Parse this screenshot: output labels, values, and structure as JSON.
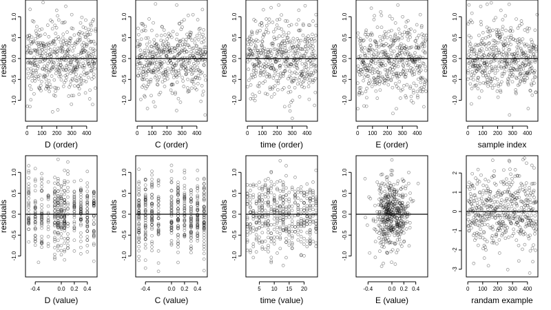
{
  "chart_data": [
    {
      "id": "D_order",
      "type": "scatter",
      "xlabel": "D (order)",
      "ylabel": "residuals",
      "xlim": [
        -10,
        470
      ],
      "ylim": [
        -1.5,
        1.4
      ],
      "xticks": [
        0,
        100,
        200,
        300,
        400
      ],
      "yticks": [
        -1.0,
        -0.5,
        0.0,
        0.5,
        1.0
      ],
      "ytick_labels": [
        "-1.0",
        "-0.5",
        "0.0",
        "0.5",
        "1.0"
      ],
      "hline": 0,
      "x_generator": "index",
      "n": 460,
      "y_sd": 0.45,
      "points_sample": [
        [
          260,
          1.25
        ],
        [
          440,
          -1.1
        ],
        [
          20,
          -1.15
        ],
        [
          300,
          1.05
        ]
      ]
    },
    {
      "id": "C_order",
      "type": "scatter",
      "xlabel": "C (order)",
      "ylabel": "residuals",
      "xlim": [
        -10,
        470
      ],
      "ylim": [
        -1.5,
        1.4
      ],
      "xticks": [
        0,
        100,
        200,
        300,
        400
      ],
      "yticks": [
        -1.0,
        -0.5,
        0.0,
        0.5,
        1.0
      ],
      "ytick_labels": [
        "-1.0",
        "-0.5",
        "0.0",
        "0.5",
        "1.0"
      ],
      "hline": 0,
      "x_generator": "index",
      "n": 460,
      "y_sd": 0.45,
      "points_sample": [
        [
          265,
          1.28
        ],
        [
          455,
          -1.35
        ],
        [
          120,
          -1.15
        ]
      ]
    },
    {
      "id": "time_order",
      "type": "scatter",
      "xlabel": "time (order)",
      "ylabel": "residuals",
      "xlim": [
        -10,
        470
      ],
      "ylim": [
        -1.5,
        1.4
      ],
      "xticks": [
        0,
        100,
        200,
        300,
        400
      ],
      "yticks": [
        -1.0,
        -0.5,
        0.0,
        0.5,
        1.0
      ],
      "ytick_labels": [
        "-1.0",
        "-0.5",
        "0.0",
        "0.5",
        "1.0"
      ],
      "hline": 0,
      "x_generator": "index",
      "n": 460,
      "y_sd": 0.45,
      "points_sample": [
        [
          210,
          1.28
        ],
        [
          460,
          1.05
        ],
        [
          250,
          -1.15
        ]
      ]
    },
    {
      "id": "E_order",
      "type": "scatter",
      "xlabel": "E (order)",
      "ylabel": "residuals",
      "xlim": [
        -10,
        470
      ],
      "ylim": [
        -1.5,
        1.4
      ],
      "xticks": [
        0,
        100,
        200,
        300,
        400
      ],
      "yticks": [
        -1.0,
        -0.5,
        0.0,
        0.5,
        1.0
      ],
      "ytick_labels": [
        "-1.0",
        "-0.5",
        "0.0",
        "0.5",
        "1.0"
      ],
      "hline": 0,
      "x_generator": "index",
      "n": 460,
      "y_sd": 0.45,
      "points_sample": [
        [
          270,
          1.28
        ],
        [
          420,
          1.05
        ],
        [
          260,
          -1.2
        ]
      ]
    },
    {
      "id": "sample_index",
      "type": "scatter",
      "xlabel": "sample index",
      "ylabel": "residuals",
      "xlim": [
        -10,
        470
      ],
      "ylim": [
        -1.5,
        1.4
      ],
      "xticks": [
        0,
        100,
        200,
        300,
        400
      ],
      "yticks": [
        -1.0,
        -0.5,
        0.0,
        0.5,
        1.0
      ],
      "ytick_labels": [
        "-1.0",
        "-0.5",
        "0.0",
        "0.5",
        "1.0"
      ],
      "hline": 0,
      "x_generator": "index",
      "n": 460,
      "y_sd": 0.45,
      "points_sample": [
        [
          130,
          1.3
        ],
        [
          465,
          1.05
        ],
        [
          280,
          -1.35
        ]
      ]
    },
    {
      "id": "D_value",
      "type": "scatter",
      "xlabel": "D (value)",
      "ylabel": "residuals",
      "xlim": [
        -0.55,
        0.55
      ],
      "ylim": [
        -1.5,
        1.4
      ],
      "xticks": [
        -0.4,
        0.0,
        0.2,
        0.4
      ],
      "xtick_labels": [
        "-0.4",
        "0.0",
        "0.2",
        "0.4"
      ],
      "yticks": [
        -1.0,
        -0.5,
        0.0,
        0.5,
        1.0
      ],
      "ytick_labels": [
        "-1.0",
        "-0.5",
        "0.0",
        "0.5",
        "1.0"
      ],
      "hline": 0,
      "x_generator": "levels",
      "levels": [
        -0.5,
        -0.4,
        -0.3,
        -0.2,
        -0.1,
        -0.05,
        0.0,
        0.05,
        0.1,
        0.2,
        0.3,
        0.4,
        0.5
      ],
      "n": 460,
      "y_sd": 0.45,
      "points_sample": [
        [
          0.1,
          1.25
        ],
        [
          -0.35,
          -1.15
        ]
      ]
    },
    {
      "id": "C_value",
      "type": "scatter",
      "xlabel": "C (value)",
      "ylabel": "residuals",
      "xlim": [
        -0.55,
        0.55
      ],
      "ylim": [
        -1.5,
        1.4
      ],
      "xticks": [
        -0.4,
        0.0,
        0.2,
        0.4
      ],
      "xtick_labels": [
        "-0.4",
        "0.0",
        "0.2",
        "0.4"
      ],
      "yticks": [
        -1.0,
        -0.5,
        0.0,
        0.5,
        1.0
      ],
      "ytick_labels": [
        "-1.0",
        "-0.5",
        "0.0",
        "0.5",
        "1.0"
      ],
      "hline": 0,
      "x_generator": "levels",
      "levels": [
        -0.5,
        -0.4,
        -0.3,
        -0.2,
        0.0,
        0.1,
        0.2,
        0.3,
        0.4,
        0.5
      ],
      "n": 460,
      "y_sd": 0.45,
      "points_sample": [
        [
          0.2,
          1.05
        ],
        [
          0.5,
          -1.35
        ]
      ]
    },
    {
      "id": "time_value",
      "type": "scatter",
      "xlabel": "time (value)",
      "ylabel": "residuals",
      "xlim": [
        0.5,
        24.5
      ],
      "ylim": [
        -1.5,
        1.4
      ],
      "xticks": [
        5,
        10,
        15,
        20
      ],
      "xtick_labels": [
        "5",
        "10",
        "15",
        "20"
      ],
      "yticks": [
        -1.0,
        -0.5,
        0.0,
        0.5,
        1.0
      ],
      "ytick_labels": [
        "-1.0",
        "-0.5",
        "0.0",
        "0.5",
        "1.0"
      ],
      "hline": 0,
      "x_generator": "levels",
      "levels": [
        1,
        2,
        3,
        4,
        5,
        6,
        7,
        8,
        9,
        10,
        11,
        12,
        13,
        14,
        15,
        16,
        17,
        18,
        19,
        20,
        21,
        22,
        23,
        24
      ],
      "n": 460,
      "y_sd": 0.45,
      "points_sample": [
        [
          12,
          1.28
        ],
        [
          24,
          1.05
        ]
      ]
    },
    {
      "id": "E_value",
      "type": "scatter",
      "xlabel": "E (value)",
      "ylabel": "residuals",
      "xlim": [
        -0.6,
        0.6
      ],
      "ylim": [
        -1.5,
        1.4
      ],
      "xticks": [
        -0.4,
        0.0,
        0.2,
        0.4
      ],
      "xtick_labels": [
        "-0.4",
        "0.0",
        "0.2",
        "0.4"
      ],
      "yticks": [
        -1.0,
        -0.5,
        0.0,
        0.5,
        1.0
      ],
      "ytick_labels": [
        "-1.0",
        "-0.5",
        "0.0",
        "0.5",
        "1.0"
      ],
      "hline": 0,
      "x_generator": "centered",
      "x_sd": 0.14,
      "n": 460,
      "y_sd": 0.45,
      "points_sample": [
        [
          0.0,
          1.3
        ],
        [
          -0.45,
          0.85
        ]
      ]
    },
    {
      "id": "random_example",
      "type": "scatter",
      "xlabel": "randam example",
      "ylabel": "",
      "xlim": [
        -10,
        470
      ],
      "ylim": [
        -3.4,
        2.9
      ],
      "xticks": [
        0,
        100,
        200,
        300,
        400
      ],
      "yticks": [
        -3,
        -2,
        -1,
        0,
        1,
        2
      ],
      "ytick_labels": [
        "-3",
        "-2",
        "-1",
        "0",
        "1",
        "2"
      ],
      "hline": 0,
      "x_generator": "index",
      "n": 460,
      "y_sd": 1.0,
      "points_sample": [
        [
          280,
          2.6
        ],
        [
          430,
          2.4
        ],
        [
          40,
          -2.7
        ],
        [
          415,
          -3.2
        ]
      ]
    }
  ]
}
